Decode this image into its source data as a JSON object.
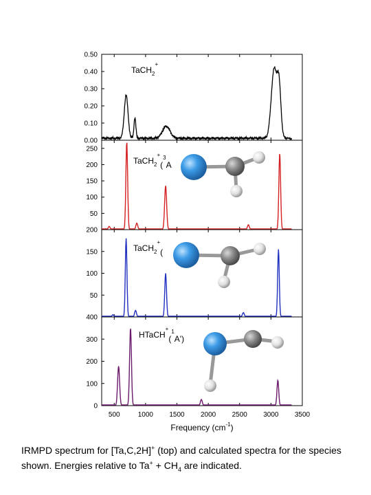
{
  "chart_data": {
    "type": "line",
    "x_axis": {
      "label_prefix": "Frequency (cm",
      "label_exp": "-1",
      "label_suffix": ")",
      "ticks": [
        500,
        1000,
        1500,
        2000,
        2500,
        3000,
        3500
      ],
      "xlim": [
        300,
        3500
      ]
    },
    "panels": [
      {
        "id": "exp",
        "label_main": "TaCH",
        "label_sub": "2",
        "label_sup": "+",
        "label_tail": "",
        "label_tail_sup": "",
        "label_tail2": "",
        "color": "#000000",
        "ylim": [
          0,
          0.5
        ],
        "yticks": [
          "0.00",
          "0.10",
          "0.20",
          "0.30",
          "0.40",
          "0.50"
        ],
        "peaks": [
          [
            690,
            0.25,
            30
          ],
          [
            830,
            0.12,
            15
          ],
          [
            1330,
            0.07,
            60
          ],
          [
            3050,
            0.4,
            45
          ],
          [
            3130,
            0.28,
            30
          ]
        ]
      },
      {
        "id": "calc1",
        "label_main": "TaCH",
        "label_sub": "2",
        "label_sup": "+",
        "label_tail": "(",
        "label_tail_sup": "3",
        "label_tail2": "A",
        "color": "#d42020",
        "ylim": [
          0,
          275
        ],
        "yticks": [
          "50",
          "100",
          "150",
          "200",
          "250"
        ],
        "peaks": [
          [
            420,
            10,
            15
          ],
          [
            700,
            270,
            14
          ],
          [
            860,
            20,
            15
          ],
          [
            1320,
            135,
            16
          ],
          [
            2640,
            15,
            15
          ],
          [
            3140,
            235,
            14
          ]
        ]
      },
      {
        "id": "calc2",
        "label_main": "TaCH",
        "label_sub": "2",
        "label_sup": "+",
        "label_tail": "(",
        "label_tail_sup": "",
        "label_tail2": "",
        "color": "#1f2fbf",
        "ylim": [
          0,
          200
        ],
        "yticks": [
          "50",
          "100",
          "150",
          "200"
        ],
        "peaks": [
          [
            480,
            5,
            15
          ],
          [
            690,
            180,
            13
          ],
          [
            840,
            15,
            15
          ],
          [
            1320,
            100,
            14
          ],
          [
            2560,
            10,
            15
          ],
          [
            3120,
            155,
            13
          ]
        ]
      },
      {
        "id": "calc3",
        "label_main": "HTaCH",
        "label_sub": "",
        "label_sup": "+",
        "label_tail": "(",
        "label_tail_sup": "1",
        "label_tail2": "A')",
        "color": "#6b1a6b",
        "ylim": [
          0,
          400
        ],
        "yticks": [
          "0",
          "100",
          "200",
          "300",
          "400"
        ],
        "peaks": [
          [
            570,
            178,
            16
          ],
          [
            760,
            350,
            15
          ],
          [
            1890,
            28,
            15
          ],
          [
            3110,
            115,
            14
          ]
        ]
      }
    ]
  },
  "caption": {
    "part1": "IRMPD spectrum for [Ta,C,2H]",
    "part1_sup": "+",
    "part2": " (top) and calculated spectra for the species shown.   Energies relative to Ta",
    "part2_sup": "+",
    "part3": " + CH",
    "part3_sub": "4",
    "part4": " are indicated."
  },
  "colors": {
    "ta_atom": "#3c9be6",
    "c_atom": "#8a8a8a",
    "h_atom": "#e6e6e6"
  }
}
